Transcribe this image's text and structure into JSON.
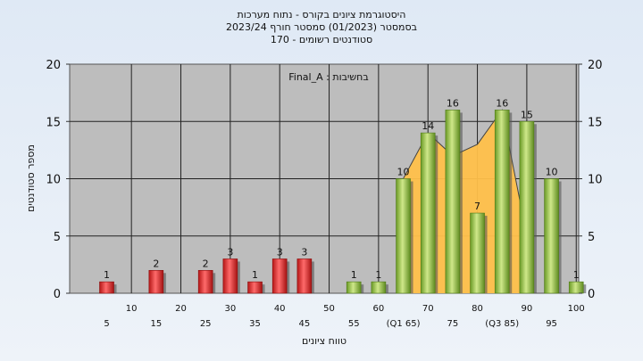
{
  "chart_data": {
    "type": "bar",
    "title_lines": [
      "היסטוגרמת ציונים בקורס - נתוח מערכות",
      "בסמסטר  (01/2023)  סמסטר חורף 2023/24",
      "סטודנטים רשומים - 170"
    ],
    "xlabel": "טווח ציונים",
    "ylabel": "מספר סטודנטים",
    "legend_text": "בחשיבות : Final_A",
    "ylim": [
      0,
      20
    ],
    "yticks": [
      0,
      5,
      10,
      15,
      20
    ],
    "xticks_row1": [
      "10",
      "20",
      "30",
      "40",
      "50",
      "60",
      "70",
      "80",
      "90",
      "100"
    ],
    "xticks_row2": [
      "5",
      "15",
      "25",
      "35",
      "45",
      "55",
      "(Q1 65)",
      "75",
      "(Q3 85)",
      "95"
    ],
    "categories": [
      "5",
      "10",
      "15",
      "20",
      "25",
      "30",
      "35",
      "40",
      "45",
      "50",
      "55",
      "60",
      "65",
      "70",
      "75",
      "80",
      "85",
      "90",
      "95",
      "100"
    ],
    "values": [
      1,
      0,
      2,
      0,
      2,
      3,
      1,
      3,
      3,
      0,
      1,
      1,
      10,
      14,
      16,
      7,
      16,
      15,
      10,
      1
    ],
    "fail_threshold": 55,
    "colors": {
      "fail": "#dd2b2b",
      "pass": "#8ab83a",
      "area": "#ffc04a",
      "plot_bg": "#bdbdbd"
    },
    "distribution_area": [
      {
        "x": 65,
        "y": 10
      },
      {
        "x": 70,
        "y": 14
      },
      {
        "x": 75,
        "y": 12
      },
      {
        "x": 80,
        "y": 13
      },
      {
        "x": 85,
        "y": 16
      },
      {
        "x": 90,
        "y": 5
      }
    ]
  }
}
